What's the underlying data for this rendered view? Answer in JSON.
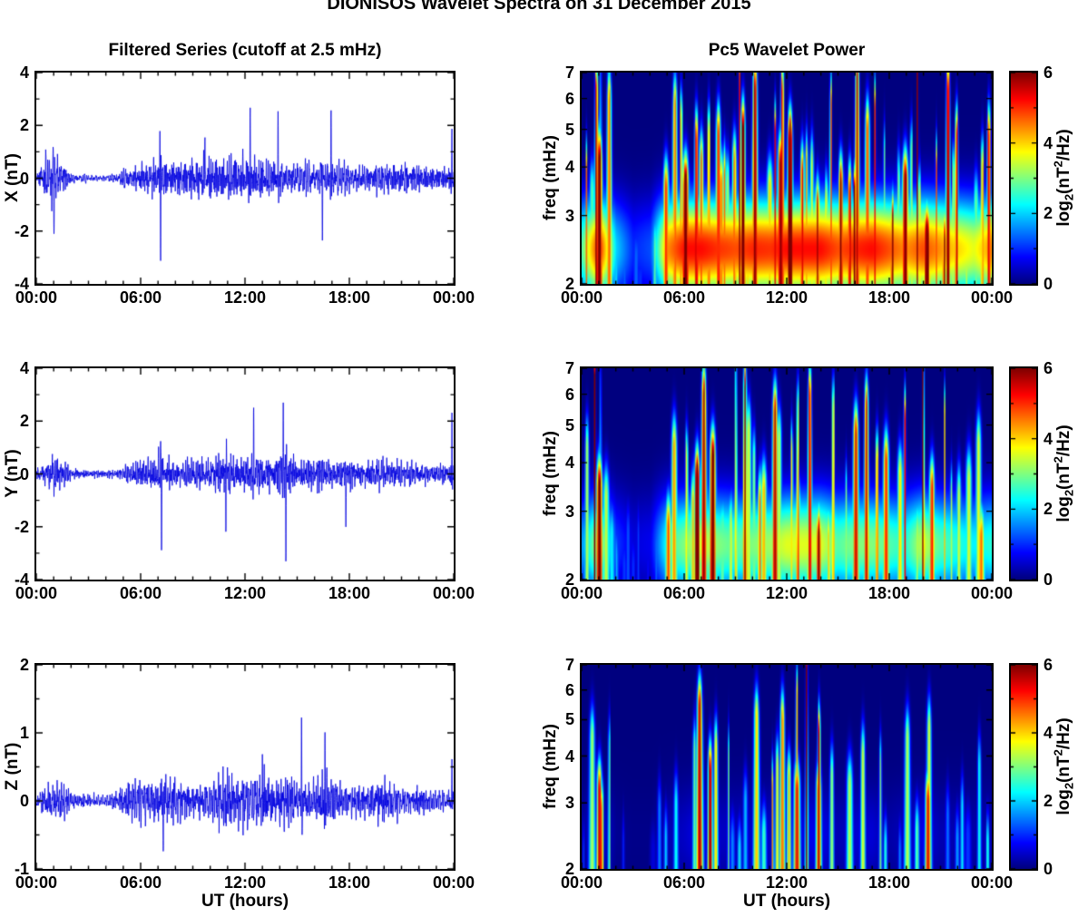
{
  "figure": {
    "title": "DIONISOS Wavelet Spectra on 31 December 2015"
  },
  "columns": {
    "left": {
      "title": "Filtered Series (cutoff at 2.5 mHz)",
      "xlabel": "UT (hours)"
    },
    "right": {
      "title": "Pc5 Wavelet Power",
      "xlabel": "UT (hours)"
    }
  },
  "axes": {
    "x_tick_labels": [
      "00:00",
      "06:00",
      "12:00",
      "18:00",
      "00:00"
    ],
    "x_range_hours": [
      0,
      24
    ]
  },
  "colorbar": {
    "tick_values": [
      6,
      4,
      2,
      0
    ],
    "tick_labels": [
      "6",
      "4",
      "2",
      "0"
    ],
    "range": [
      0,
      6
    ],
    "colormap": "jet",
    "label_parts": {
      "prefix": "log",
      "sub": "2",
      "mid": "(nT",
      "sup": "2",
      "suffix": "/Hz)"
    }
  },
  "colors": {
    "line": "#0000E0",
    "axis": "#000000",
    "background": "#FFFFFF"
  },
  "chart_data": [
    {
      "id": "x-series",
      "type": "line",
      "ylabel": "X (nT)",
      "ylim": [
        -4,
        4
      ],
      "yticks": [
        4,
        2,
        0,
        -2,
        -4
      ],
      "ytick_labels": [
        "4",
        "2",
        "0",
        "-2",
        "-4"
      ],
      "minor_step": 1,
      "seed": 7,
      "envelope_hourly": [
        0.15,
        0.9,
        0.2,
        0.12,
        0.12,
        0.3,
        0.5,
        0.55,
        0.5,
        0.5,
        0.55,
        0.55,
        0.6,
        0.6,
        0.55,
        0.5,
        0.6,
        0.6,
        0.5,
        0.4,
        0.45,
        0.4,
        0.35,
        0.3,
        0.35
      ],
      "spikes": [
        [
          1.02,
          -2.1
        ],
        [
          7.15,
          -3.05
        ],
        [
          7.1,
          1.6
        ],
        [
          9.7,
          1.9
        ],
        [
          12.3,
          2.4
        ],
        [
          13.9,
          2.2
        ],
        [
          16.45,
          -2.55
        ],
        [
          16.95,
          2.8
        ],
        [
          23.9,
          1.55
        ]
      ]
    },
    {
      "id": "y-series",
      "type": "line",
      "ylabel": "Y (nT)",
      "ylim": [
        -4,
        4
      ],
      "yticks": [
        4,
        2,
        0,
        -2,
        -4
      ],
      "ytick_labels": [
        "4",
        "2",
        "0",
        "-2",
        "-4"
      ],
      "minor_step": 1,
      "seed": 13,
      "envelope_hourly": [
        0.12,
        0.7,
        0.15,
        0.1,
        0.1,
        0.25,
        0.45,
        0.5,
        0.42,
        0.4,
        0.5,
        0.5,
        0.55,
        0.6,
        0.6,
        0.45,
        0.45,
        0.5,
        0.45,
        0.35,
        0.45,
        0.4,
        0.3,
        0.25,
        0.3
      ],
      "spikes": [
        [
          7.2,
          -2.6
        ],
        [
          7.15,
          1.5
        ],
        [
          10.9,
          -1.85
        ],
        [
          12.5,
          2.3
        ],
        [
          14.2,
          2.35
        ],
        [
          14.35,
          -3.25
        ],
        [
          17.8,
          -2.2
        ],
        [
          23.9,
          2.05
        ]
      ]
    },
    {
      "id": "z-series",
      "type": "line",
      "ylabel": "Z (nT)",
      "ylim": [
        -1,
        2
      ],
      "yticks": [
        2,
        1,
        0,
        -1
      ],
      "ytick_labels": [
        "2",
        "1",
        "0",
        "-1"
      ],
      "minor_step": 0.5,
      "seed": 21,
      "envelope_hourly": [
        0.08,
        0.35,
        0.1,
        0.07,
        0.07,
        0.15,
        0.25,
        0.3,
        0.25,
        0.22,
        0.25,
        0.3,
        0.3,
        0.35,
        0.3,
        0.3,
        0.25,
        0.25,
        0.2,
        0.18,
        0.3,
        0.2,
        0.15,
        0.12,
        0.15
      ],
      "spikes": [
        [
          7.3,
          -0.8
        ],
        [
          13.0,
          0.8
        ],
        [
          15.25,
          1.2
        ],
        [
          16.6,
          0.85
        ],
        [
          23.9,
          0.65
        ]
      ]
    },
    {
      "id": "x-wavelet",
      "type": "heatmap",
      "ylabel": "freq (mHz)",
      "f_range": [
        2,
        7
      ],
      "f_ticks": [
        7,
        6,
        5,
        4,
        3,
        2
      ],
      "f_tick_labels": [
        "7",
        "6",
        "5",
        "4",
        "3",
        "2"
      ],
      "clim": [
        0,
        6
      ],
      "seed": 31,
      "density": 2.6,
      "carpet": 0.8,
      "envelope_hourly": [
        3.5,
        6.5,
        2.5,
        1.2,
        1.5,
        5.5,
        6.5,
        6.5,
        6.2,
        6.0,
        6.3,
        6.2,
        6.5,
        6.5,
        6.5,
        6.0,
        6.3,
        6.5,
        6.0,
        5.5,
        6.0,
        5.5,
        5.0,
        4.5,
        5.5
      ],
      "major": [
        [
          1.0,
          6.8,
          3.6,
          0.2
        ],
        [
          1.08,
          5.2,
          7.0,
          0.05
        ]
      ]
    },
    {
      "id": "y-wavelet",
      "type": "heatmap",
      "ylabel": "freq (mHz)",
      "f_range": [
        2,
        7
      ],
      "f_ticks": [
        7,
        6,
        5,
        4,
        3,
        2
      ],
      "f_tick_labels": [
        "7",
        "6",
        "5",
        "4",
        "3",
        "2"
      ],
      "clim": [
        0,
        6
      ],
      "seed": 41,
      "density": 2.1,
      "carpet": 0.55,
      "envelope_hourly": [
        3.0,
        6.5,
        2.0,
        1.0,
        1.2,
        4.5,
        5.5,
        6.5,
        5.5,
        5.0,
        5.5,
        5.8,
        6.5,
        6.5,
        6.5,
        5.0,
        5.5,
        5.5,
        5.0,
        4.5,
        6.3,
        5.0,
        4.5,
        4.0,
        4.5
      ],
      "major": [
        [
          1.0,
          6.8,
          3.4,
          0.2
        ],
        [
          1.08,
          4.6,
          6.5,
          0.045
        ]
      ]
    },
    {
      "id": "z-wavelet",
      "type": "heatmap",
      "ylabel": "freq (mHz)",
      "f_range": [
        2,
        7
      ],
      "f_ticks": [
        7,
        6,
        5,
        4,
        3,
        2
      ],
      "f_tick_labels": [
        "7",
        "6",
        "5",
        "4",
        "3",
        "2"
      ],
      "clim": [
        0,
        6
      ],
      "seed": 51,
      "density": 1.4,
      "carpet": 0.12,
      "envelope_hourly": [
        1.5,
        5.5,
        1.0,
        0.5,
        0.5,
        2.5,
        3.5,
        5.8,
        3.5,
        3.0,
        3.5,
        3.5,
        5.0,
        5.2,
        5.5,
        2.5,
        4.0,
        4.2,
        2.0,
        3.0,
        5.3,
        2.5,
        2.5,
        2.0,
        2.5
      ],
      "major": [
        [
          1.0,
          5.8,
          3.2,
          0.16
        ],
        [
          7.5,
          6.2,
          3.6,
          0.14
        ],
        [
          12.6,
          5.5,
          3.2,
          0.2
        ],
        [
          13.9,
          5.8,
          4.5,
          0.1
        ],
        [
          20.3,
          5.6,
          3.0,
          0.18
        ]
      ]
    }
  ]
}
